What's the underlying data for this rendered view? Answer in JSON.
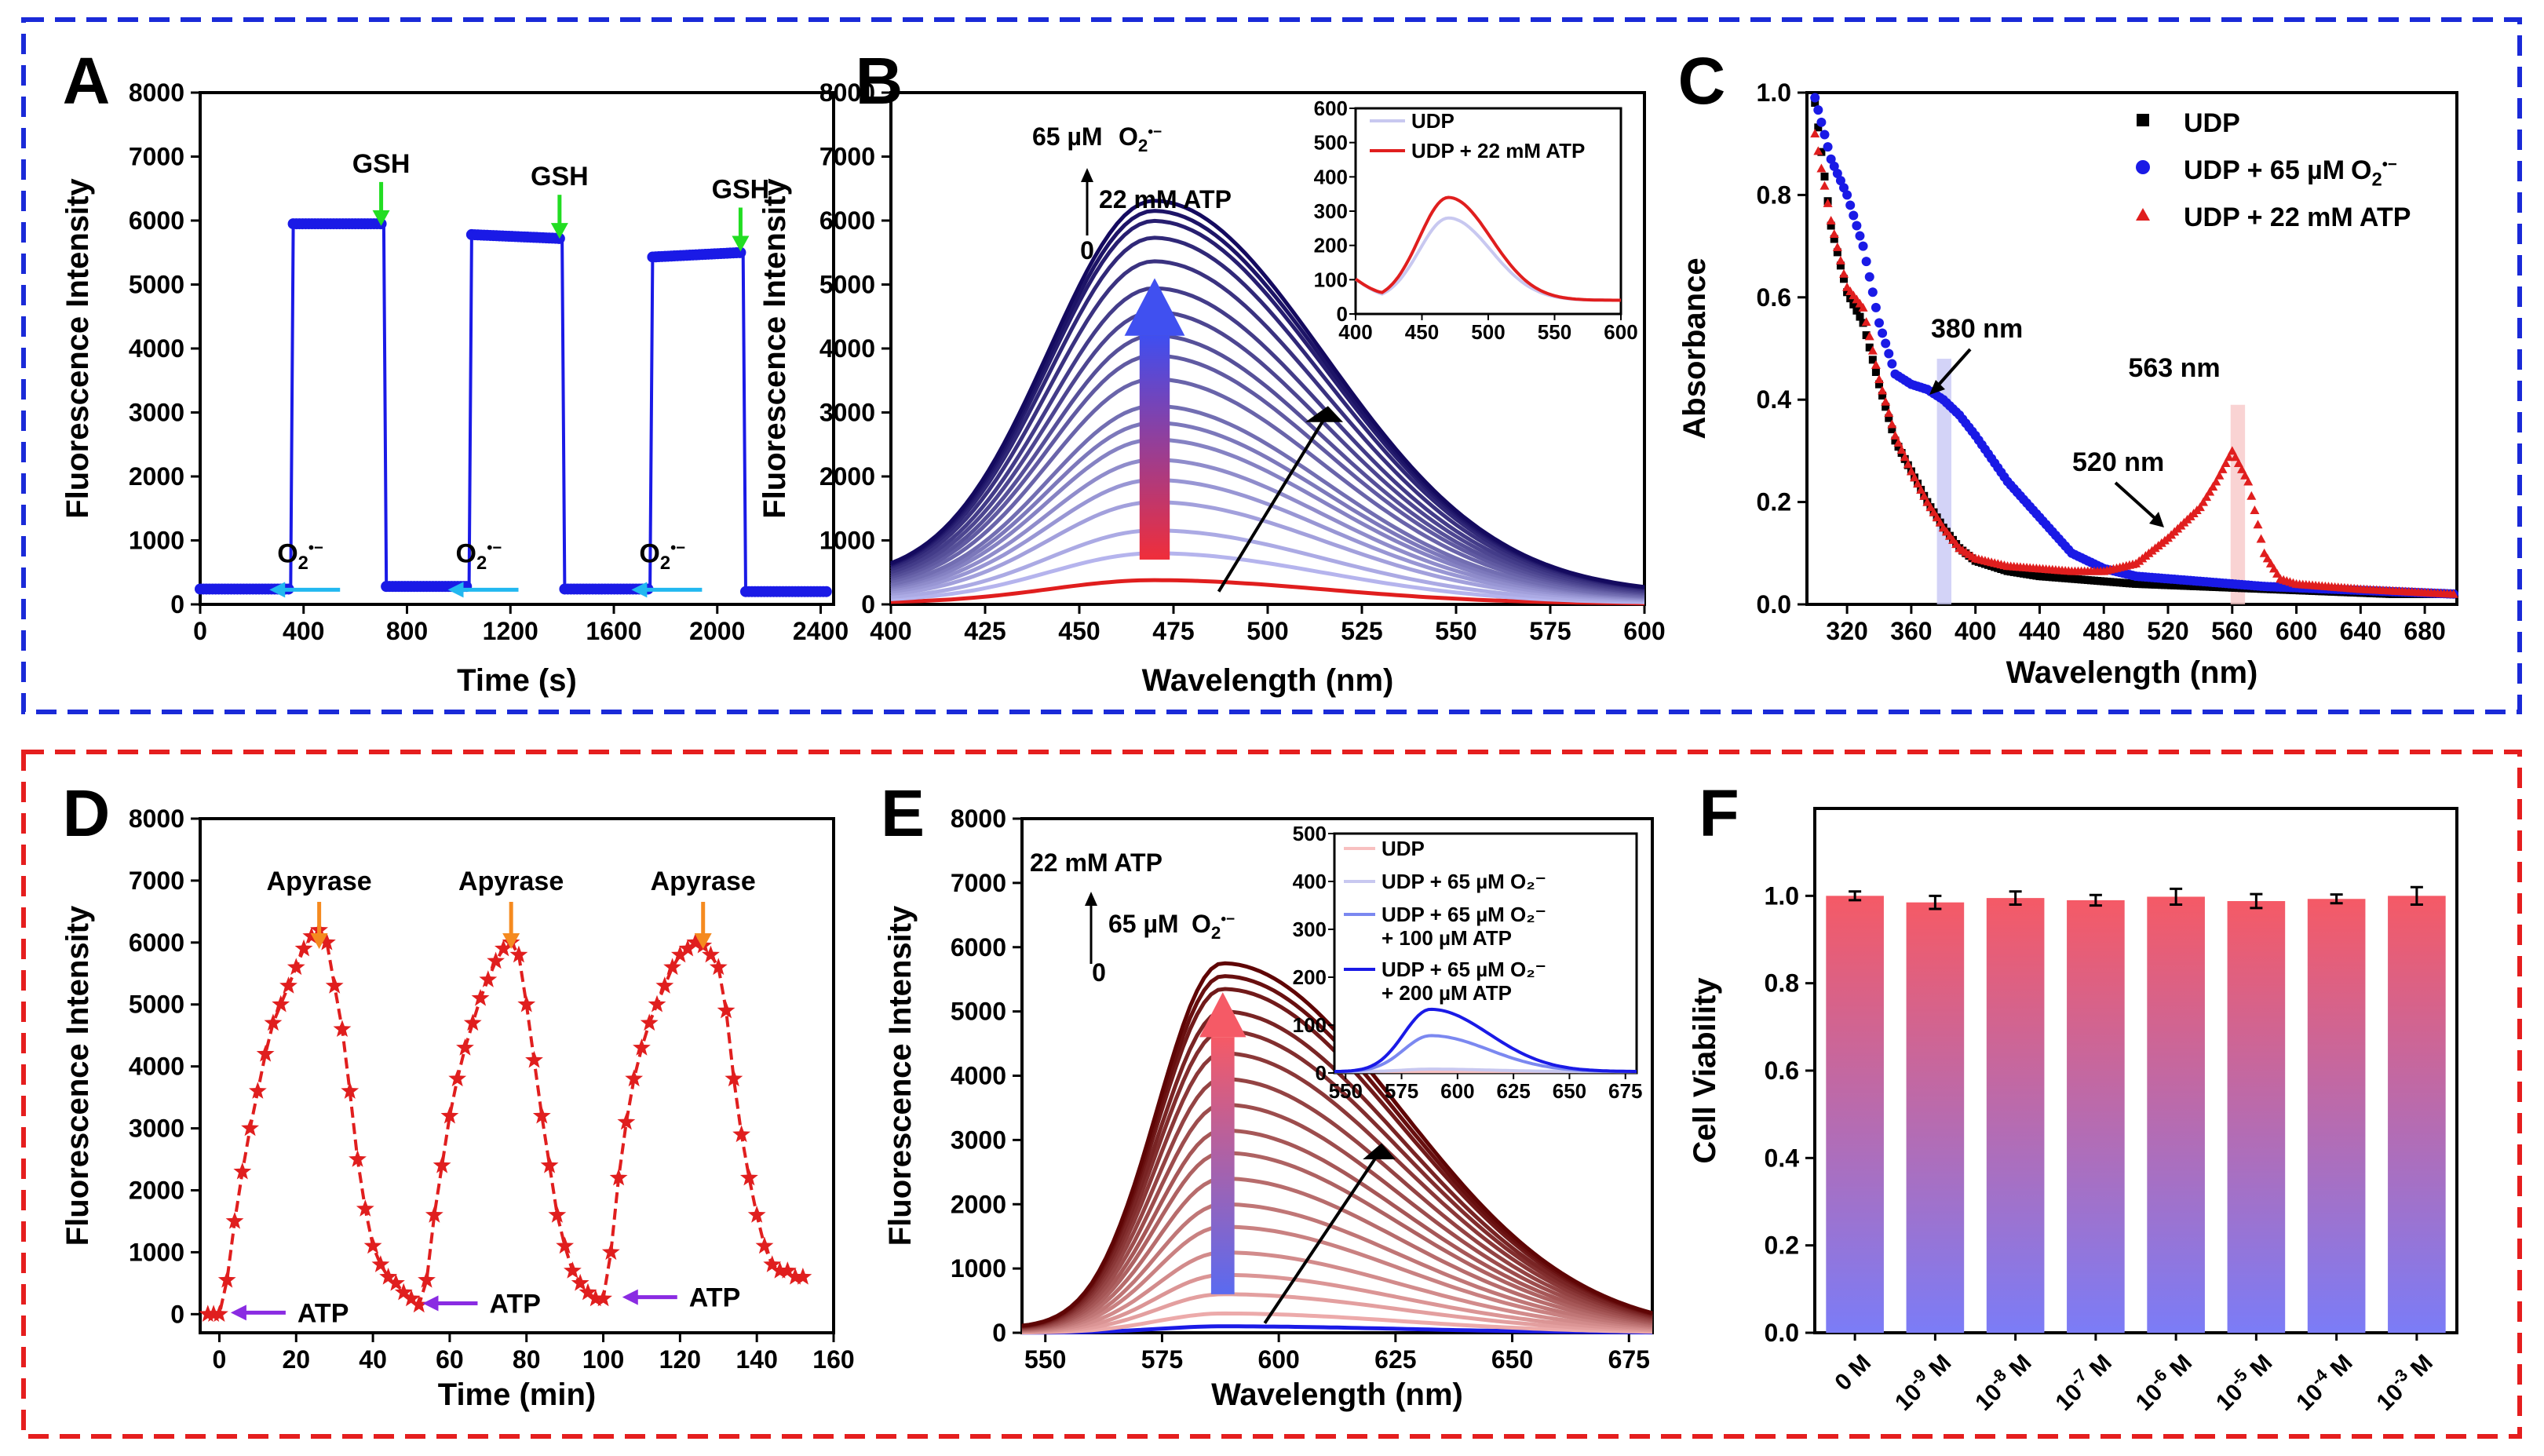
{
  "colors": {
    "blue": "#1a1ae6",
    "red": "#e01e1e",
    "green": "#22dd22",
    "cyan": "#22b8f0",
    "orange": "#f58a1f",
    "purple": "#8a2be2",
    "frame_top": "#1a2ad8",
    "frame_bottom": "#e51e1e"
  },
  "chart_data": [
    {
      "panel": "A",
      "type": "line",
      "xlabel": "Time (s)",
      "ylabel": "Fluorescence Intensity",
      "xlim": [
        0,
        2450
      ],
      "ylim": [
        0,
        8000
      ],
      "xticks": [
        "0",
        "400",
        "800",
        "1200",
        "1600",
        "2000",
        "2400"
      ],
      "yticks": [
        "0",
        "1000",
        "2000",
        "3000",
        "4000",
        "5000",
        "6000",
        "7000",
        "8000"
      ],
      "series": [
        {
          "color": "#1a1ae6",
          "x": [
            0,
            330,
            350,
            360,
            700,
            710,
            720,
            1030,
            1040,
            1050,
            1390,
            1400,
            1410,
            1720,
            1740,
            1750,
            2090,
            2100,
            2110,
            2430
          ],
          "y": [
            240,
            240,
            240,
            5950,
            5950,
            5950,
            280,
            280,
            280,
            5780,
            5720,
            5720,
            240,
            240,
            240,
            5430,
            5500,
            5500,
            200,
            200
          ]
        }
      ],
      "annotations": [
        {
          "text": "GSH",
          "x": 700,
          "y": 6750,
          "arrow": "green"
        },
        {
          "text": "GSH",
          "x": 1390,
          "y": 6550,
          "arrow": "green"
        },
        {
          "text": "GSH",
          "x": 2090,
          "y": 6350,
          "arrow": "green"
        },
        {
          "text": "O₂•⁻",
          "x": 450,
          "y": 720,
          "arrow": "cyan"
        },
        {
          "text": "O₂•⁻",
          "x": 1140,
          "y": 720,
          "arrow": "cyan"
        },
        {
          "text": "O₂•⁻",
          "x": 1850,
          "y": 720,
          "arrow": "cyan"
        }
      ]
    },
    {
      "panel": "B",
      "type": "line",
      "xlabel": "Wavelength (nm)",
      "ylabel": "Fluorescence Intensity",
      "xlim": [
        400,
        600
      ],
      "ylim": [
        0,
        8000
      ],
      "xticks": [
        "400",
        "425",
        "450",
        "475",
        "500",
        "525",
        "550",
        "575",
        "600"
      ],
      "yticks": [
        "0",
        "1000",
        "2000",
        "3000",
        "4000",
        "5000",
        "6000",
        "7000",
        "8000"
      ],
      "peak": 470,
      "series_peaks": [
        360,
        760,
        1100,
        1520,
        1850,
        2150,
        2450,
        2700,
        2950,
        3350,
        3700,
        4000,
        4350,
        4700,
        5100,
        5450,
        5700,
        5850,
        6000
      ],
      "annotations": [
        "65 µM O₂•⁻",
        "22 mM ATP",
        "0"
      ],
      "inset": {
        "xlim": [
          400,
          600
        ],
        "ylim": [
          0,
          600
        ],
        "xticks": [
          "400",
          "450",
          "500",
          "550",
          "600"
        ],
        "yticks": [
          "0",
          "100",
          "200",
          "300",
          "400",
          "500",
          "600"
        ],
        "legend": [
          "UDP",
          "UDP + 22 mM ATP"
        ],
        "peaks": [
          300,
          360
        ]
      }
    },
    {
      "panel": "C",
      "type": "scatter",
      "xlabel": "Wavelength (nm)",
      "ylabel": "Absorbance",
      "xlim": [
        295,
        700
      ],
      "ylim": [
        0,
        1.0
      ],
      "xticks": [
        "320",
        "360",
        "400",
        "440",
        "480",
        "520",
        "560",
        "600",
        "640",
        "680"
      ],
      "yticks": [
        "0.0",
        "0.2",
        "0.4",
        "0.6",
        "0.8",
        "1.0"
      ],
      "legend": [
        "UDP",
        "UDP + 65 µM O₂•⁻",
        "UDP + 22 mM ATP"
      ],
      "series": [
        {
          "name": "UDP",
          "marker": "square",
          "color": "#000000",
          "x": [
            300,
            310,
            320,
            330,
            340,
            350,
            360,
            370,
            380,
            390,
            400,
            420,
            440,
            460,
            480,
            500,
            540,
            580,
            620,
            660,
            700
          ],
          "y": [
            0.98,
            0.74,
            0.61,
            0.55,
            0.43,
            0.32,
            0.26,
            0.2,
            0.15,
            0.11,
            0.085,
            0.065,
            0.055,
            0.05,
            0.045,
            0.04,
            0.035,
            0.03,
            0.025,
            0.02,
            0.02
          ]
        },
        {
          "name": "UDP + 65 µM O₂•⁻",
          "marker": "circle",
          "color": "#1a1ae6",
          "x": [
            300,
            310,
            320,
            330,
            340,
            350,
            360,
            370,
            380,
            390,
            400,
            420,
            440,
            460,
            480,
            500,
            540,
            580,
            620,
            660,
            700
          ],
          "y": [
            0.99,
            0.87,
            0.8,
            0.7,
            0.55,
            0.45,
            0.43,
            0.42,
            0.4,
            0.37,
            0.33,
            0.24,
            0.17,
            0.1,
            0.07,
            0.055,
            0.045,
            0.035,
            0.03,
            0.025,
            0.02
          ]
        },
        {
          "name": "UDP + 22 mM ATP",
          "marker": "triangle",
          "color": "#e01e1e",
          "x": [
            300,
            310,
            320,
            330,
            340,
            350,
            360,
            370,
            380,
            390,
            400,
            420,
            440,
            460,
            480,
            500,
            520,
            530,
            540,
            550,
            560,
            570,
            580,
            590,
            600,
            640,
            700
          ],
          "y": [
            0.92,
            0.75,
            0.62,
            0.58,
            0.44,
            0.33,
            0.26,
            0.2,
            0.15,
            0.11,
            0.09,
            0.075,
            0.07,
            0.065,
            0.065,
            0.08,
            0.13,
            0.16,
            0.19,
            0.24,
            0.3,
            0.24,
            0.1,
            0.05,
            0.04,
            0.03,
            0.02
          ]
        }
      ],
      "annotations": [
        {
          "text": "380 nm",
          "x": 380,
          "y": 0.45
        },
        {
          "text": "520 nm",
          "x": 520,
          "y": 0.22
        },
        {
          "text": "563 nm",
          "x": 563,
          "y": 0.35
        }
      ]
    },
    {
      "panel": "D",
      "type": "line",
      "xlabel": "Time (min)",
      "ylabel": "Fluorescence Intensity",
      "xlim": [
        -5,
        160
      ],
      "ylim": [
        -300,
        8000
      ],
      "xticks": [
        "0",
        "20",
        "40",
        "60",
        "80",
        "100",
        "120",
        "140",
        "160"
      ],
      "yticks": [
        "0",
        "1000",
        "2000",
        "3000",
        "4000",
        "5000",
        "6000",
        "7000",
        "8000"
      ],
      "series": [
        {
          "color": "#e01e1e",
          "marker": "star",
          "x": [
            -3,
            -1.5,
            0,
            2,
            4,
            6,
            8,
            10,
            12,
            14,
            16,
            18,
            20,
            22,
            24,
            26,
            28,
            30,
            32,
            34,
            36,
            38,
            40,
            42,
            44,
            46,
            48,
            50,
            52,
            54,
            56,
            58,
            60,
            62,
            64,
            66,
            68,
            70,
            72,
            74,
            76,
            78,
            80,
            82,
            84,
            86,
            88,
            90,
            92,
            94,
            96,
            98,
            100,
            102,
            104,
            106,
            108,
            110,
            112,
            114,
            116,
            118,
            120,
            122,
            124,
            126,
            128,
            130,
            132,
            134,
            136,
            138,
            140,
            142,
            144,
            146,
            148,
            150,
            152
          ],
          "y": [
            0,
            0,
            0,
            550,
            1500,
            2300,
            3000,
            3600,
            4200,
            4700,
            5000,
            5300,
            5600,
            5900,
            6100,
            6200,
            6000,
            5300,
            4600,
            3600,
            2500,
            1700,
            1100,
            800,
            600,
            500,
            350,
            250,
            150,
            550,
            1600,
            2400,
            3200,
            3800,
            4300,
            4700,
            5100,
            5400,
            5700,
            5900,
            6000,
            5800,
            5000,
            4100,
            3200,
            2400,
            1600,
            1100,
            700,
            500,
            350,
            250,
            250,
            1000,
            2200,
            3100,
            3800,
            4300,
            4700,
            5000,
            5300,
            5600,
            5800,
            5900,
            6000,
            5950,
            5800,
            5600,
            4900,
            3800,
            2900,
            2200,
            1600,
            1100,
            800,
            700,
            700,
            600,
            600
          ]
        }
      ],
      "annotations": [
        {
          "text": "Apyrase",
          "x": 26,
          "y": 7100,
          "arrow": "orange"
        },
        {
          "text": "Apyrase",
          "x": 76,
          "y": 7100,
          "arrow": "orange"
        },
        {
          "text": "Apyrase",
          "x": 126,
          "y": 7100,
          "arrow": "orange"
        },
        {
          "text": "ATP",
          "x": 5,
          "y": 0,
          "arrow": "purple"
        },
        {
          "text": "ATP",
          "x": 55,
          "y": 150,
          "arrow": "purple"
        },
        {
          "text": "ATP",
          "x": 107,
          "y": 250,
          "arrow": "purple"
        }
      ]
    },
    {
      "panel": "E",
      "type": "line",
      "xlabel": "Wavelength (nm)",
      "ylabel": "Fluorescence Intensity",
      "xlim": [
        545,
        680
      ],
      "ylim": [
        0,
        8000
      ],
      "xticks": [
        "550",
        "575",
        "600",
        "625",
        "650",
        "675"
      ],
      "yticks": [
        "0",
        "1000",
        "2000",
        "3000",
        "4000",
        "5000",
        "6000",
        "7000",
        "8000"
      ],
      "peak": 588,
      "series_peaks": [
        100,
        300,
        600,
        900,
        1250,
        1650,
        2000,
        2400,
        2800,
        3150,
        3550,
        3950,
        4350,
        4700,
        5000,
        5350,
        5550,
        5750
      ],
      "annotations": [
        "22 mM ATP",
        "65 µM O₂•⁻",
        "0"
      ],
      "inset": {
        "xlim": [
          545,
          680
        ],
        "ylim": [
          0,
          500
        ],
        "xticks": [
          "550",
          "575",
          "600",
          "625",
          "650",
          "675"
        ],
        "yticks": [
          "0",
          "100",
          "200",
          "300",
          "400",
          "500"
        ],
        "legend": [
          "UDP",
          "UDP + 65 µM O₂⁻",
          "UDP + 65 µM O₂⁻",
          "+ 100 µM ATP",
          "UDP + 65 µM O₂⁻",
          "+ 200 µM ATP"
        ],
        "peaks": [
          0,
          5,
          75,
          130
        ]
      }
    },
    {
      "panel": "F",
      "type": "bar",
      "ylabel": "Cell Viability",
      "ylim": [
        0,
        1.2
      ],
      "yticks": [
        "0.0",
        "0.2",
        "0.4",
        "0.6",
        "0.8",
        "1.0"
      ],
      "categories": [
        {
          "base": "0 M",
          "exp": ""
        },
        {
          "base": "10",
          "exp": "-9",
          "unit": " M"
        },
        {
          "base": "10",
          "exp": "-8",
          "unit": " M"
        },
        {
          "base": "10",
          "exp": "-7",
          "unit": " M"
        },
        {
          "base": "10",
          "exp": "-6",
          "unit": " M"
        },
        {
          "base": "10",
          "exp": "-5",
          "unit": " M"
        },
        {
          "base": "10",
          "exp": "-4",
          "unit": " M"
        },
        {
          "base": "10",
          "exp": "-3",
          "unit": " M"
        }
      ],
      "values": [
        1.0,
        0.985,
        0.995,
        0.99,
        0.998,
        0.988,
        0.993,
        1.0
      ],
      "errors": [
        0.01,
        0.015,
        0.015,
        0.012,
        0.018,
        0.016,
        0.01,
        0.02
      ],
      "bar_gradient": [
        "#f55a66",
        "#7b7cf7"
      ]
    }
  ],
  "panel_labels": [
    "A",
    "B",
    "C",
    "D",
    "E",
    "F"
  ]
}
